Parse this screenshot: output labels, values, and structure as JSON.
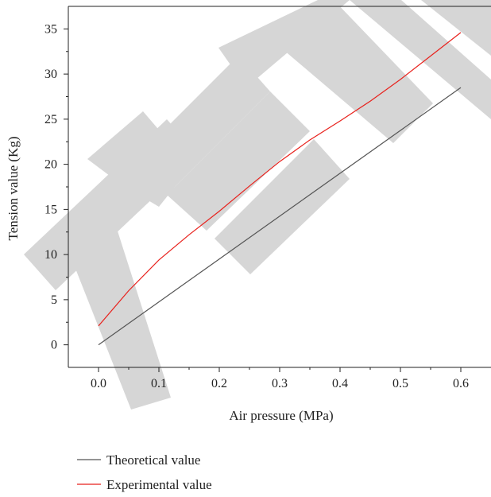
{
  "chart_data": {
    "type": "line",
    "xlabel": "Air pressure (MPa)",
    "ylabel": "Tension value (Kg)",
    "xlim": [
      -0.05,
      0.65
    ],
    "ylim": [
      -2.5,
      37.5
    ],
    "x_ticks": [
      0.0,
      0.1,
      0.2,
      0.3,
      0.4,
      0.5,
      0.6
    ],
    "x_tick_labels": [
      "0.0",
      "0.1",
      "0.2",
      "0.3",
      "0.4",
      "0.5",
      "0.6"
    ],
    "y_ticks": [
      0,
      5,
      10,
      15,
      20,
      25,
      30,
      35
    ],
    "y_tick_labels": [
      "0",
      "5",
      "10",
      "15",
      "20",
      "25",
      "30",
      "35"
    ],
    "grid": false,
    "legend_position": "bottom-left, below plot",
    "series": [
      {
        "name": "Theoretical value",
        "color": "#555555",
        "x": [
          0.0,
          0.6
        ],
        "y": [
          0.0,
          28.5
        ]
      },
      {
        "name": "Experimental value",
        "color": "#e8211c",
        "x": [
          0.0,
          0.05,
          0.1,
          0.15,
          0.2,
          0.25,
          0.3,
          0.35,
          0.4,
          0.45,
          0.5,
          0.55,
          0.6
        ],
        "y": [
          2.1,
          6.0,
          9.4,
          12.2,
          14.8,
          17.6,
          20.3,
          22.7,
          24.8,
          27.0,
          29.4,
          32.0,
          34.6
        ]
      }
    ]
  },
  "watermark": {
    "text": "RETRACTED",
    "color": "#d6d6d6"
  }
}
